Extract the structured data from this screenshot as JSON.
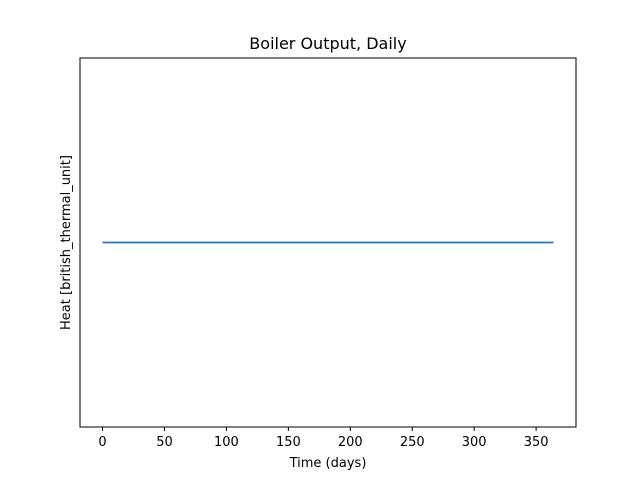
{
  "chart_data": {
    "type": "line",
    "title": "Boiler Output, Daily",
    "xlabel": "Time (days)",
    "ylabel": "Heat [british_thermal_unit]",
    "xlim": [
      -18.2,
      382.2
    ],
    "ylim": [
      -1,
      1
    ],
    "xticks": [
      0,
      50,
      100,
      150,
      200,
      250,
      300,
      350
    ],
    "yticks": [],
    "grid": false,
    "legend": false,
    "series": [
      {
        "color": "#1f77b4",
        "x": [
          0,
          364
        ],
        "y": [
          0,
          0
        ]
      }
    ]
  }
}
